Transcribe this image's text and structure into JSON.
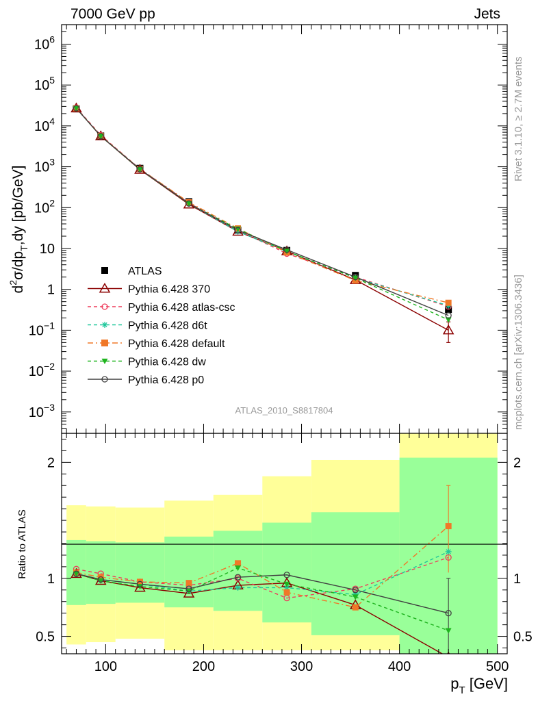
{
  "header": {
    "energy_label": "7000 GeV pp",
    "category_label": "Jets"
  },
  "side_labels": {
    "rivet": "Rivet 3.1.10, ≥ 2.7M events",
    "mcplots": "mcplots.cern.ch [arXiv:1306.3436]"
  },
  "analysis_id": "ATLAS_2010_S8817804",
  "chart_data": [
    {
      "type": "line",
      "panel": "main",
      "ylabel_main": "d",
      "ylabel_sup": "2",
      "ylabel_rest": "σ/dp",
      "ylabel_sub": "T",
      "ylabel_tail": ",dy [pb/GeV]",
      "yscale": "log",
      "ylim": [
        0.0003,
        3000000
      ],
      "xlim": [
        55,
        510
      ],
      "y_tick_labels": [
        {
          "value": 1000000,
          "base": "10",
          "exp": "6"
        },
        {
          "value": 100000,
          "base": "10",
          "exp": "5"
        },
        {
          "value": 10000,
          "base": "10",
          "exp": "4"
        },
        {
          "value": 1000,
          "base": "10",
          "exp": "3"
        },
        {
          "value": 100,
          "base": "10",
          "exp": "2"
        },
        {
          "value": 10,
          "base": "10",
          "exp": ""
        },
        {
          "value": 1,
          "base": "1",
          "exp": ""
        },
        {
          "value": 0.1,
          "base": "10",
          "exp": "−1"
        },
        {
          "value": 0.01,
          "base": "10",
          "exp": "−2"
        },
        {
          "value": 0.001,
          "base": "10",
          "exp": "−3"
        }
      ],
      "x": [
        70,
        95,
        135,
        185,
        235,
        285,
        355,
        450
      ],
      "data": {
        "name": "ATLAS",
        "values": [
          26000,
          5700,
          920,
          140,
          28,
          9,
          2.2,
          0.32
        ]
      },
      "series": [
        {
          "name": "Pythia 6.428 370",
          "color": "#8b0000",
          "dash": "",
          "marker": "triangle-open",
          "values": [
            27000,
            5600,
            850,
            120,
            26,
            8.6,
            1.7,
            0.1
          ]
        },
        {
          "name": "Pythia 6.428 atlas-csc",
          "color": "#ee3b5a",
          "dash": "5,4",
          "marker": "circle-open",
          "values": [
            28000,
            5900,
            890,
            130,
            28,
            7.5,
            2.0,
            0.38
          ]
        },
        {
          "name": "Pythia 6.428 d6t",
          "color": "#1fc79a",
          "dash": "5,4",
          "marker": "star",
          "values": [
            27000,
            5700,
            870,
            125,
            26,
            8.4,
            1.9,
            0.4
          ]
        },
        {
          "name": "Pythia 6.428 default",
          "color": "#f07828",
          "dash": "8,4,2,4",
          "marker": "square",
          "values": [
            27000,
            5700,
            880,
            135,
            31,
            8.0,
            1.65,
            0.47
          ]
        },
        {
          "name": "Pythia 6.428 dw",
          "color": "#1fb41f",
          "dash": "5,4",
          "marker": "triangle-down",
          "values": [
            27000,
            5600,
            860,
            125,
            30,
            8.6,
            1.9,
            0.18
          ]
        },
        {
          "name": "Pythia 6.428 p0",
          "color": "#404040",
          "dash": "",
          "marker": "circle-open",
          "values": [
            27000,
            5600,
            870,
            126,
            28,
            9.3,
            2.0,
            0.23
          ]
        }
      ],
      "errors_last_point": {
        "series": "Pythia 6.428 370",
        "low": 0.05,
        "high": 0.16
      }
    },
    {
      "type": "line",
      "panel": "ratio",
      "ylabel": "Ratio to ATLAS",
      "ylim": [
        0.35,
        2.25
      ],
      "xlim": [
        55,
        510
      ],
      "xlabel_main": "p",
      "xlabel_sub": "T",
      "xlabel_tail": " [GeV]",
      "x_ticks": [
        100,
        200,
        300,
        400,
        500
      ],
      "x_tick_labels": [
        "100",
        "200",
        "300",
        "400",
        "500"
      ],
      "y_ticks": [
        0.5,
        1,
        2
      ],
      "y_tick_labels": [
        "0.5",
        "1",
        "2"
      ],
      "bins": [
        [
          60,
          80
        ],
        [
          80,
          110
        ],
        [
          110,
          160
        ],
        [
          160,
          210
        ],
        [
          210,
          260
        ],
        [
          260,
          310
        ],
        [
          310,
          400
        ],
        [
          400,
          500
        ]
      ],
      "x": [
        70,
        95,
        135,
        185,
        235,
        285,
        355,
        450
      ],
      "band_total": {
        "low": [
          0.43,
          0.45,
          0.48,
          0.38,
          0.38,
          0.38,
          0.38,
          0.35
        ],
        "high": [
          1.63,
          1.62,
          1.61,
          1.67,
          1.72,
          1.88,
          2.02,
          2.3
        ]
      },
      "band_stat": {
        "low": [
          0.77,
          0.78,
          0.79,
          0.75,
          0.72,
          0.62,
          0.51,
          0.35
        ],
        "high": [
          1.33,
          1.32,
          1.31,
          1.36,
          1.41,
          1.48,
          1.57,
          2.04
        ]
      },
      "series": [
        {
          "name": "Pythia 6.428 370",
          "color": "#8b0000",
          "dash": "",
          "marker": "triangle-open",
          "values": [
            1.04,
            0.98,
            0.92,
            0.87,
            0.94,
            0.96,
            0.77,
            0.32
          ]
        },
        {
          "name": "Pythia 6.428 atlas-csc",
          "color": "#ee3b5a",
          "dash": "5,4",
          "marker": "circle-open",
          "values": [
            1.08,
            1.04,
            0.97,
            0.94,
            1.0,
            0.83,
            0.91,
            1.18
          ]
        },
        {
          "name": "Pythia 6.428 d6t",
          "color": "#1fc79a",
          "dash": "5,4",
          "marker": "star",
          "values": [
            1.04,
            0.99,
            0.95,
            0.89,
            0.92,
            0.92,
            0.86,
            1.23
          ]
        },
        {
          "name": "Pythia 6.428 default",
          "color": "#f07828",
          "dash": "8,4,2,4",
          "marker": "square",
          "values": [
            1.05,
            1.01,
            0.97,
            0.96,
            1.13,
            0.88,
            0.75,
            1.45
          ]
        },
        {
          "name": "Pythia 6.428 dw",
          "color": "#1fb41f",
          "dash": "5,4",
          "marker": "triangle-down",
          "values": [
            1.04,
            0.98,
            0.93,
            0.89,
            1.09,
            0.95,
            0.84,
            0.55
          ]
        },
        {
          "name": "Pythia 6.428 p0",
          "color": "#404040",
          "dash": "",
          "marker": "circle-open",
          "values": [
            1.04,
            0.99,
            0.95,
            0.91,
            1.01,
            1.03,
            0.9,
            0.7
          ]
        }
      ],
      "errors_last_point": [
        {
          "series": "Pythia 6.428 default",
          "low": 1.05,
          "high": 1.8
        },
        {
          "series": "Pythia 6.428 p0",
          "low": 0.35,
          "high": 1.0
        }
      ]
    }
  ]
}
